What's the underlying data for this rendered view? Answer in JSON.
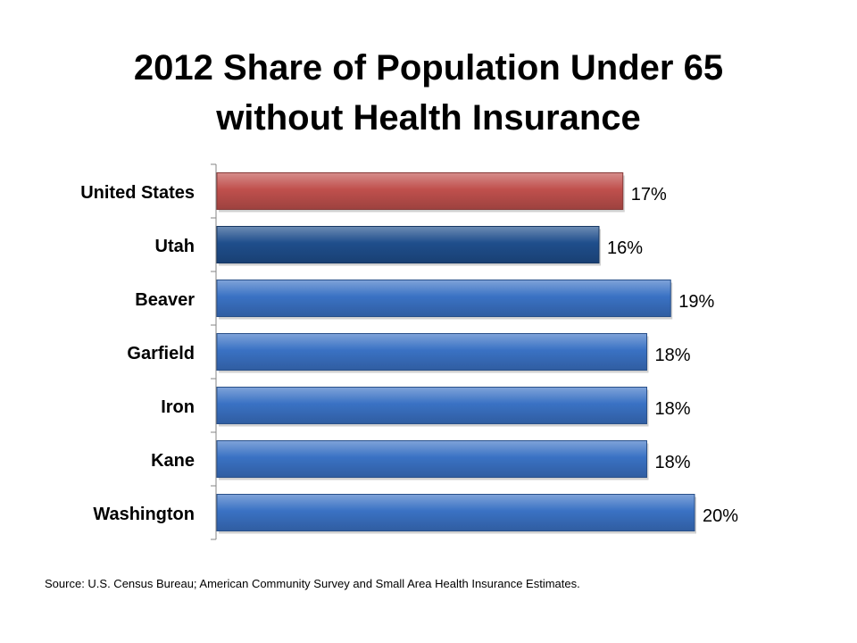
{
  "title_line1": "2012 Share of Population Under 65",
  "title_line2": "without Health Insurance",
  "source": "Source: U.S. Census Bureau; American Community Survey and Small Area Health Insurance Estimates.",
  "colors": {
    "us": "#c0504d",
    "utah": "#1f4e8c",
    "county": "#3a72c4"
  },
  "chart_data": {
    "type": "bar",
    "orientation": "horizontal",
    "title": "2012 Share of Population Under 65 without Health Insurance",
    "xlabel": "",
    "ylabel": "",
    "xlim": [
      0,
      20
    ],
    "grid": false,
    "categories": [
      "United States",
      "Utah",
      "Beaver",
      "Garfield",
      "Iron",
      "Kane",
      "Washington"
    ],
    "values": [
      17,
      16,
      19,
      18,
      18,
      18,
      20
    ],
    "data_labels": [
      "17%",
      "16%",
      "19%",
      "18%",
      "18%",
      "18%",
      "20%"
    ],
    "bar_colors": [
      "us",
      "utah",
      "county",
      "county",
      "county",
      "county",
      "county"
    ]
  }
}
